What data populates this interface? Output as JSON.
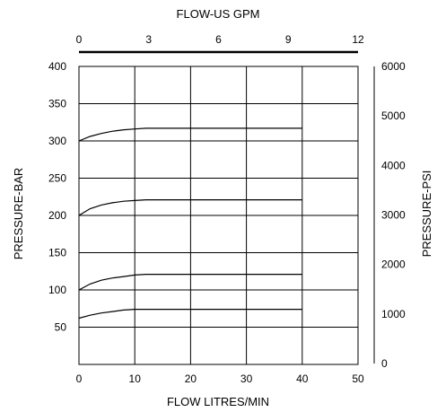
{
  "chart_data": {
    "type": "line",
    "title": "",
    "xlabel": "FLOW LITRES/MIN",
    "ylabel": "PRESSURE-BAR",
    "x2label": "FLOW-US GPM",
    "y2label": "PRESSURE-PSI",
    "xlim": [
      0,
      50
    ],
    "ylim": [
      0,
      400
    ],
    "x2lim": [
      0,
      12
    ],
    "y2lim": [
      0,
      6000
    ],
    "grid": true,
    "x_ticks": [
      "0",
      "10",
      "20",
      "30",
      "40",
      "50"
    ],
    "y_ticks": [
      "50",
      "100",
      "150",
      "200",
      "250",
      "300",
      "350",
      "400"
    ],
    "x2_ticks": [
      "0",
      "3",
      "6",
      "9",
      "12"
    ],
    "y2_ticks": [
      "0",
      "1000",
      "2000",
      "3000",
      "4000",
      "5000",
      "6000"
    ],
    "series": [
      {
        "x": [
          0,
          2,
          4,
          6,
          8,
          10,
          12,
          40
        ],
        "y": [
          300,
          306,
          310,
          313,
          315,
          316,
          317,
          317
        ]
      },
      {
        "x": [
          0,
          2,
          4,
          6,
          8,
          10,
          12,
          40
        ],
        "y": [
          200,
          209,
          214,
          217,
          219,
          220,
          221,
          221
        ]
      },
      {
        "x": [
          0,
          2,
          4,
          6,
          8,
          10,
          12,
          40
        ],
        "y": [
          100,
          108,
          113,
          116,
          118,
          120,
          121,
          121
        ]
      },
      {
        "x": [
          0,
          2,
          4,
          6,
          8,
          10,
          12,
          40
        ],
        "y": [
          62,
          66,
          69,
          71,
          73,
          74,
          74,
          74
        ]
      }
    ],
    "colors": {
      "line": "#000000",
      "grid": "#000000"
    }
  }
}
